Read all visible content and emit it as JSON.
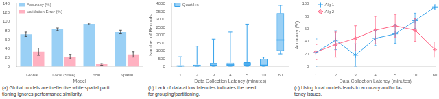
{
  "chart_data": [
    {
      "type": "bar",
      "categories": [
        "Global",
        "Local (Stale)",
        "Local",
        "Spatial"
      ],
      "series": [
        {
          "name": "Accuracy (%)",
          "values": [
            72,
            83,
            95,
            77
          ],
          "errors": [
            5,
            3,
            2,
            4
          ]
        },
        {
          "name": "Validation Error (%)",
          "values": [
            33,
            22,
            5,
            27
          ],
          "errors": [
            8,
            5,
            2,
            6
          ]
        }
      ],
      "xlabel": "Model",
      "ylim": [
        0,
        140
      ],
      "yticks": [
        0,
        20,
        40,
        60,
        80,
        100,
        120,
        140
      ],
      "grid": false,
      "legend": "upper left",
      "annotations": [
        "(a) Global models are ineffective while spatial parti",
        "tioning ignores performance similarity."
      ]
    },
    {
      "type": "box",
      "categories": [
        "1",
        "2",
        "3",
        "4",
        "5",
        "10",
        "60"
      ],
      "series": [
        {
          "name": "Quartiles",
          "boxes": [
            {
              "min": 0,
              "q1": 0,
              "median": 30,
              "q3": 80,
              "max": 620
            },
            {
              "min": 0,
              "q1": 0,
              "median": 40,
              "q3": 120,
              "max": 1300
            },
            {
              "min": 0,
              "q1": 50,
              "median": 80,
              "q3": 200,
              "max": 1750
            },
            {
              "min": 0,
              "q1": 50,
              "median": 100,
              "q3": 250,
              "max": 2200
            },
            {
              "min": 0,
              "q1": 60,
              "median": 150,
              "q3": 280,
              "max": 2700
            },
            {
              "min": 0,
              "q1": 30,
              "median": 80,
              "q3": 500,
              "max": 600
            },
            {
              "min": 800,
              "q1": 1000,
              "median": 1700,
              "q3": 3400,
              "max": 3900
            }
          ]
        }
      ],
      "xlabel": "Data Collection Latency (minutes)",
      "ylabel": "Number of Records",
      "ylim": [
        0,
        4000
      ],
      "yticks": [
        0,
        500,
        1000,
        1500,
        2000,
        2500,
        3000,
        3500,
        4000
      ],
      "grid": false,
      "legend": "upper left",
      "annotations": [
        "(b) Lack of data at low latencies indicates the need",
        "for grouping/partitioning."
      ]
    },
    {
      "type": "line",
      "categories": [
        "1",
        "2",
        "3",
        "4",
        "5",
        "10",
        "60"
      ],
      "series": [
        {
          "name": "Alg 1",
          "values": [
            22,
            42,
            18,
            45,
            52,
            73,
            95
          ],
          "errors": [
            22,
            15,
            18,
            12,
            15,
            12,
            3
          ],
          "marker": "plus",
          "line_style": "solid"
        },
        {
          "name": "Alg 2",
          "values": [
            23,
            35,
            45,
            58,
            65,
            58,
            27
          ],
          "errors": [
            12,
            20,
            20,
            22,
            18,
            18,
            12
          ],
          "marker": "diamond",
          "line_style": "solid"
        }
      ],
      "xlabel": "Data Collection Latency (minutes)",
      "ylabel": "Accuracy (%)",
      "ylim": [
        0,
        100
      ],
      "yticks": [
        0,
        20,
        40,
        60,
        80,
        100
      ],
      "grid": false,
      "legend": "upper left",
      "annotations": [
        "(c) Using local models leads to accuracy and/or la-",
        "tency issues."
      ]
    }
  ]
}
